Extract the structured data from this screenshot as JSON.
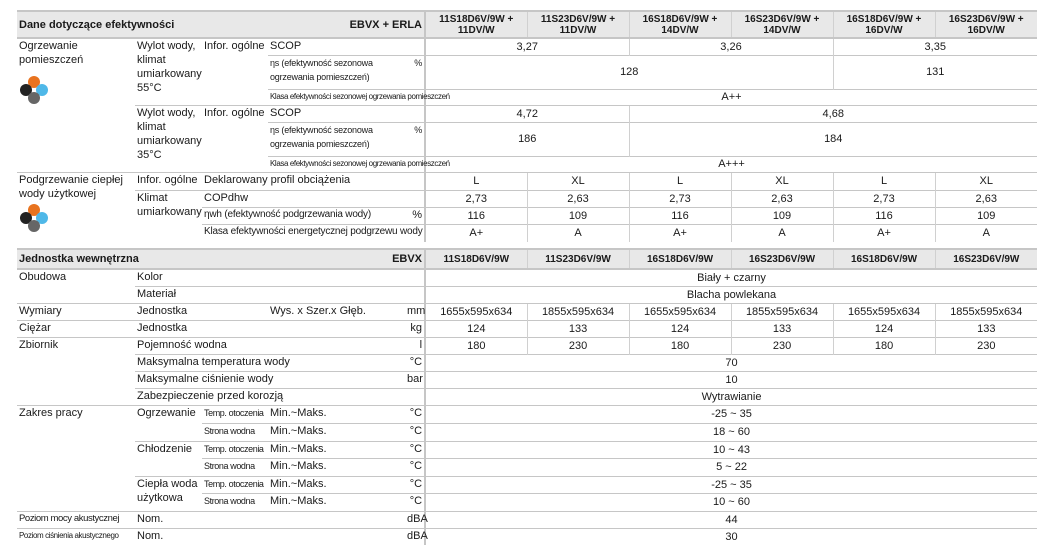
{
  "efficiency": {
    "title": "Dane dotyczące efektywności",
    "brand": "EBVX + ERLA",
    "models": [
      "11S18D6V/9W + 11DV/W",
      "11S23D6V/9W + 11DV/W",
      "16S18D6V/9W + 14DV/W",
      "16S23D6V/9W + 14DV/W",
      "16S18D6V/9W + 16DV/W",
      "16S23D6V/9W + 16DV/W"
    ],
    "heating": {
      "label": "Ogrzewanie pomieszczeń",
      "icon": "climate-zones-icon",
      "r55": {
        "label": "Wylot wody, klimat umiarkowany 55°C",
        "info": "Infor. ogólne",
        "scop_label": "SCOP",
        "eta_label": "ηs (efektywność sezonowa ogrzewania pomieszczeń)",
        "pct": "%",
        "class_label": "Klasa efektywności sezonowej ogrzewania pomieszczeń",
        "scop": [
          "3,27",
          "3,26",
          "3,35"
        ],
        "eta": [
          "128",
          "131"
        ],
        "class": "A++"
      },
      "r35": {
        "label": "Wylot wody, klimat umiarkowany 35°C",
        "info": "Infor. ogólne",
        "scop_label": "SCOP",
        "eta_label": "ηs (efektywność sezonowa ogrzewania pomieszczeń)",
        "pct": "%",
        "class_label": "Klasa efektywności sezonowej ogrzewania pomieszczeń",
        "scop": [
          "4,72",
          "4,68"
        ],
        "eta": [
          "186",
          "184"
        ],
        "class": "A+++"
      }
    },
    "dhw": {
      "label": "Podgrzewanie ciepłej wody użytkowej",
      "info": "Infor. ogólne",
      "profile_label": "Deklarowany profil obciążenia",
      "profiles": [
        "L",
        "XL",
        "L",
        "XL",
        "L",
        "XL"
      ],
      "climate": "Klimat umiarkowany",
      "cop_label": "COPdhw",
      "cop": [
        "2,73",
        "2,63",
        "2,73",
        "2,63",
        "2,73",
        "2,63"
      ],
      "eta_label": "ηwh (efektywność podgrzewania wody)",
      "pct": "%",
      "eta": [
        "116",
        "109",
        "116",
        "109",
        "116",
        "109"
      ],
      "class_label": "Klasa efektywności energetycznej podgrzewu wody",
      "classes": [
        "A+",
        "A",
        "A+",
        "A",
        "A+",
        "A"
      ]
    }
  },
  "indoor": {
    "title": "Jednostka wewnętrzna",
    "brand": "EBVX",
    "models": [
      "11S18D6V/9W",
      "11S23D6V/9W",
      "16S18D6V/9W",
      "16S23D6V/9W",
      "16S18D6V/9W",
      "16S23D6V/9W"
    ],
    "casing": {
      "label": "Obudowa",
      "color_label": "Kolor",
      "color": "Biały + czarny",
      "material_label": "Materiał",
      "material": "Blacha powlekana"
    },
    "dimensions": {
      "label": "Wymiary",
      "unit_label": "Jednostka",
      "dims_label": "Wys. x Szer.x Głęb.",
      "unit": "mm",
      "values": [
        "1655x595x634",
        "1855x595x634",
        "1655x595x634",
        "1855x595x634",
        "1655x595x634",
        "1855x595x634"
      ]
    },
    "weight": {
      "label": "Ciężar",
      "unit_label": "Jednostka",
      "unit": "kg",
      "values": [
        "124",
        "133",
        "124",
        "133",
        "124",
        "133"
      ]
    },
    "tank": {
      "label": "Zbiornik",
      "volume_label": "Pojemność wodna",
      "volume_unit": "l",
      "volume": [
        "180",
        "230",
        "180",
        "230",
        "180",
        "230"
      ],
      "max_temp_label": "Maksymalna temperatura wody",
      "max_temp_unit": "°C",
      "max_temp": "70",
      "max_pressure_label": "Maksymalne ciśnienie wody",
      "max_pressure_unit": "bar",
      "max_pressure": "10",
      "corrosion_label": "Zabezpieczenie przed korozją",
      "corrosion": "Wytrawianie"
    },
    "range": {
      "label": "Zakres pracy",
      "ambient": "Temp. otoczenia",
      "water": "Strona wodna",
      "minmax": "Min.~Maks.",
      "unit": "°C",
      "heating_label": "Ogrzewanie",
      "heating": [
        "-25 ~ 35",
        "18 ~ 60"
      ],
      "cooling_label": "Chłodzenie",
      "cooling": [
        "10 ~ 43",
        "5 ~ 22"
      ],
      "dhw_label": "Ciepła woda użytkowa",
      "dhw": [
        "-25 ~ 35",
        "10 ~ 60"
      ]
    },
    "sound_power": {
      "label": "Poziom mocy akustycznej",
      "nom": "Nom.",
      "unit": "dBA",
      "value": "44"
    },
    "sound_pressure": {
      "label": "Poziom ciśnienia akustycznego",
      "nom": "Nom.",
      "unit": "dBA",
      "value": "30"
    }
  }
}
